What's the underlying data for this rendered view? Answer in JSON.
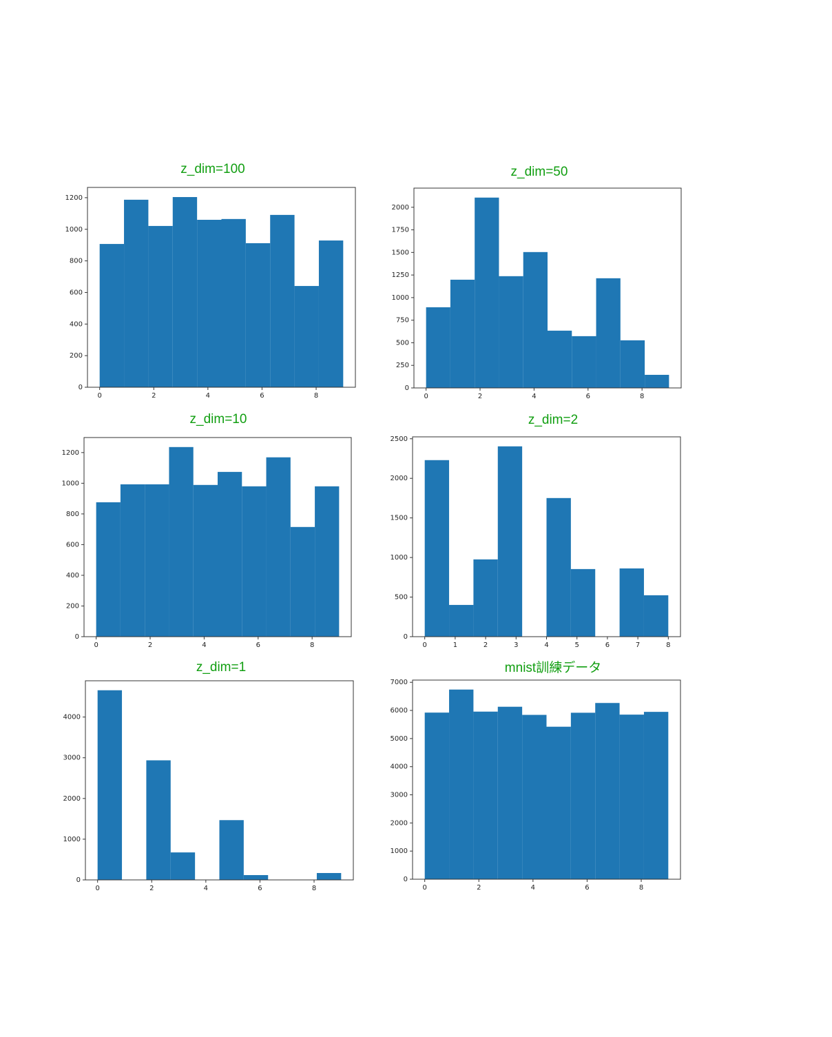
{
  "chart_data": [
    {
      "type": "histogram",
      "title": "z_dim=100",
      "color": "#1f77b4",
      "title_color": "#109e10",
      "bins": [
        0,
        0.9,
        1.8,
        2.7,
        3.6,
        4.5,
        5.4,
        6.3,
        7.2,
        8.1,
        9
      ],
      "values": [
        907,
        1187,
        1021,
        1204,
        1060,
        1065,
        912,
        1091,
        641,
        929
      ],
      "xlim": [
        -0.45,
        9.45
      ],
      "xticks": [
        0,
        2,
        4,
        6,
        8
      ],
      "ylim": [
        0,
        1265
      ],
      "yticks": [
        0,
        200,
        400,
        600,
        800,
        1000,
        1200
      ]
    },
    {
      "type": "histogram",
      "title": "z_dim=50",
      "color": "#1f77b4",
      "title_color": "#109e10",
      "bins": [
        0,
        0.9,
        1.8,
        2.7,
        3.6,
        4.5,
        5.4,
        6.3,
        7.2,
        8.1,
        9
      ],
      "values": [
        893,
        1198,
        2107,
        1237,
        1504,
        634,
        573,
        1214,
        527,
        145
      ],
      "xlim": [
        -0.45,
        9.45
      ],
      "xticks": [
        0,
        2,
        4,
        6,
        8
      ],
      "ylim": [
        0,
        2212
      ],
      "yticks": [
        0,
        250,
        500,
        750,
        1000,
        1250,
        1500,
        1750,
        2000
      ]
    },
    {
      "type": "histogram",
      "title": "z_dim=10",
      "color": "#1f77b4",
      "title_color": "#109e10",
      "bins": [
        0,
        0.9,
        1.8,
        2.7,
        3.6,
        4.5,
        5.4,
        6.3,
        7.2,
        8.1,
        9
      ],
      "values": [
        876,
        993,
        993,
        1236,
        989,
        1074,
        980,
        1169,
        715,
        980
      ],
      "xlim": [
        -0.45,
        9.45
      ],
      "xticks": [
        0,
        2,
        4,
        6,
        8
      ],
      "ylim": [
        0,
        1298
      ],
      "yticks": [
        0,
        200,
        400,
        600,
        800,
        1000,
        1200
      ]
    },
    {
      "type": "histogram",
      "title": "z_dim=2",
      "color": "#1f77b4",
      "title_color": "#109e10",
      "bins": [
        0,
        0.8,
        1.6,
        2.4,
        3.2,
        4,
        4.8,
        5.6,
        6.4,
        7.2,
        8
      ],
      "values": [
        2230,
        401,
        976,
        2404,
        0,
        1751,
        854,
        0,
        862,
        523
      ],
      "xlim": [
        -0.4,
        8.4
      ],
      "xticks": [
        0,
        1,
        2,
        3,
        4,
        5,
        6,
        7,
        8
      ],
      "ylim": [
        0,
        2524
      ],
      "yticks": [
        0,
        500,
        1000,
        1500,
        2000,
        2500
      ]
    },
    {
      "type": "histogram",
      "title": "z_dim=1",
      "color": "#1f77b4",
      "title_color": "#109e10",
      "bins": [
        0,
        0.9,
        1.8,
        2.7,
        3.6,
        4.5,
        5.4,
        6.3,
        7.2,
        8.1,
        9
      ],
      "values": [
        4658,
        0,
        2937,
        675,
        0,
        1468,
        118,
        0,
        0,
        169
      ],
      "xlim": [
        -0.45,
        9.45
      ],
      "xticks": [
        0,
        2,
        4,
        6,
        8
      ],
      "ylim": [
        0,
        4891
      ],
      "yticks": [
        0,
        1000,
        2000,
        3000,
        4000
      ]
    },
    {
      "type": "histogram",
      "title": "mnist訓練データ",
      "color": "#1f77b4",
      "title_color": "#109e10",
      "bins": [
        0,
        0.9,
        1.8,
        2.7,
        3.6,
        4.5,
        5.4,
        6.3,
        7.2,
        8.1,
        9
      ],
      "values": [
        5923,
        6742,
        5958,
        6131,
        5842,
        5421,
        5918,
        6265,
        5851,
        5949
      ],
      "xlim": [
        -0.45,
        9.45
      ],
      "xticks": [
        0,
        2,
        4,
        6,
        8
      ],
      "ylim": [
        0,
        7079
      ],
      "yticks": [
        0,
        1000,
        2000,
        3000,
        4000,
        5000,
        6000,
        7000
      ]
    }
  ]
}
